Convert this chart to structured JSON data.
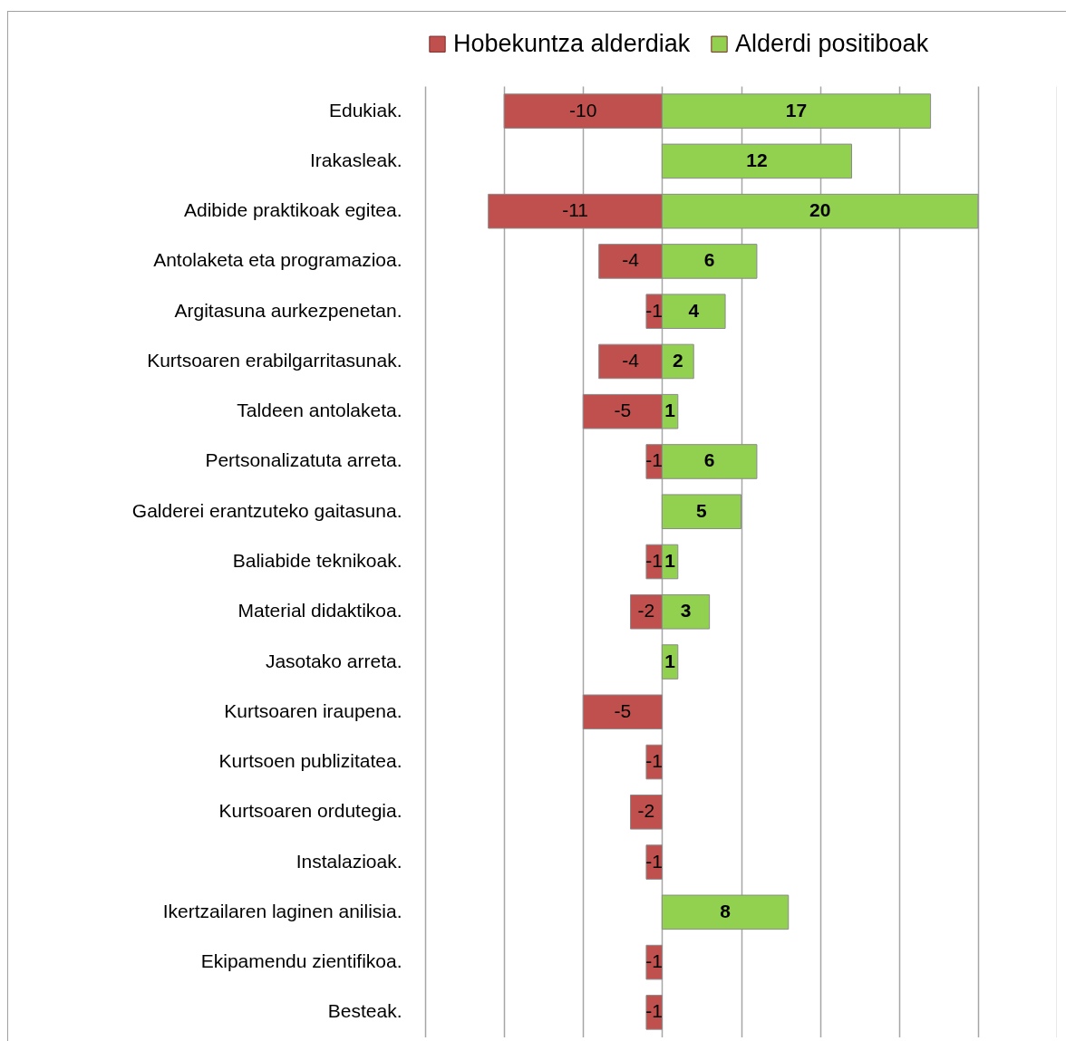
{
  "chart_data": {
    "type": "bar",
    "orientation": "horizontal",
    "data_labels": true,
    "legend": "top",
    "grid": "x",
    "tick_labels": "y",
    "categories": [
      "Edukiak.",
      "Irakasleak.",
      "Adibide praktikoak egitea.",
      "Antolaketa eta programazioa.",
      "Argitasuna aurkezpenetan.",
      "Kurtsoaren erabilgarritasunak.",
      "Taldeen antolaketa.",
      "Pertsonalizatuta arreta.",
      "Galderei erantzuteko gaitasuna.",
      "Baliabide teknikoak.",
      "Material didaktikoa.",
      "Jasotako arreta.",
      "Kurtsoaren iraupena.",
      "Kurtsoen publizitatea.",
      "Kurtsoaren ordutegia.",
      "Instalazioak.",
      "Ikertzailaren laginen anilisia.",
      "Ekipamendu zientifikoa.",
      "Besteak."
    ],
    "series": [
      {
        "name": "Hobekuntza alderdiak",
        "color": "#c0504d",
        "values": [
          -10,
          null,
          -11,
          -4,
          -1,
          -4,
          -5,
          -1,
          null,
          -1,
          -2,
          null,
          -5,
          -1,
          -2,
          -1,
          null,
          -1,
          -1
        ]
      },
      {
        "name": "Alderdi positiboak",
        "color": "#92d050",
        "values": [
          17,
          12,
          20,
          6,
          4,
          2,
          1,
          6,
          5,
          1,
          3,
          1,
          null,
          null,
          null,
          null,
          8,
          null,
          null
        ]
      }
    ],
    "xlim": [
      -15,
      25
    ],
    "xticks": [
      {
        "value": -15,
        "label": null
      },
      {
        "value": -10,
        "label": null
      },
      {
        "value": -5,
        "label": null
      },
      {
        "value": 0,
        "label": null
      },
      {
        "value": 5,
        "label": null
      },
      {
        "value": 10,
        "label": null
      },
      {
        "value": 15,
        "label": null
      },
      {
        "value": 20,
        "label": null
      },
      {
        "value": 25,
        "label": null
      }
    ]
  }
}
